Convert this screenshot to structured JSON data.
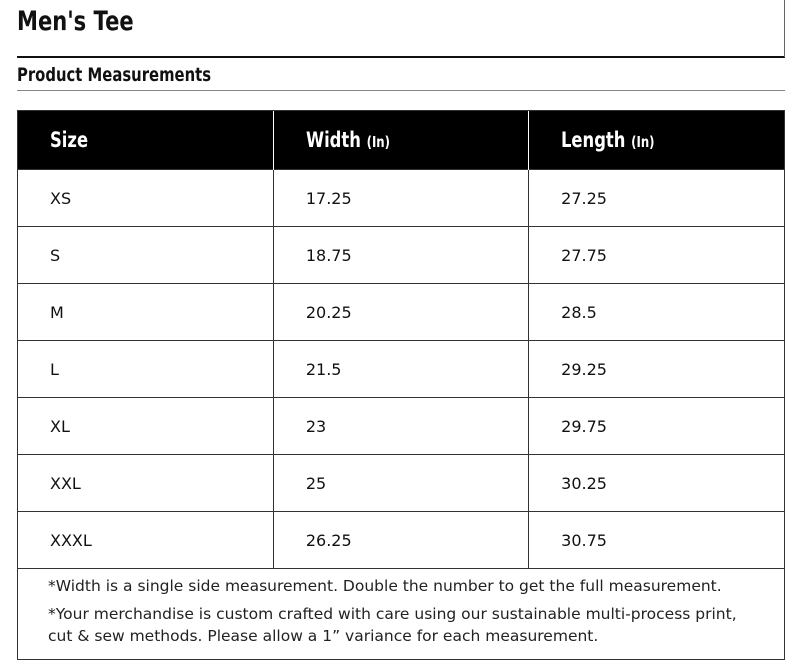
{
  "header": {
    "title": "Men's Tee",
    "subtitle": "Product Measurements"
  },
  "table": {
    "columns": [
      {
        "label": "Size"
      },
      {
        "label": "Width",
        "unit": "(In)"
      },
      {
        "label": "Length",
        "unit": "(In)"
      }
    ],
    "rows": [
      [
        "XS",
        "17.25",
        "27.25"
      ],
      [
        "S",
        "18.75",
        "27.75"
      ],
      [
        "M",
        "20.25",
        "28.5"
      ],
      [
        "L",
        "21.5",
        "29.25"
      ],
      [
        "XL",
        "23",
        "29.75"
      ],
      [
        "XXL",
        "25",
        "30.25"
      ],
      [
        "XXXL",
        "26.25",
        "30.75"
      ]
    ]
  },
  "notes": [
    "*Width is a single side measurement. Double the number to get the full measurement.",
    "*Your merchandise is custom crafted with care using our sustainable multi-process print, cut & sew methods. Please allow a 1” variance for each measurement."
  ]
}
